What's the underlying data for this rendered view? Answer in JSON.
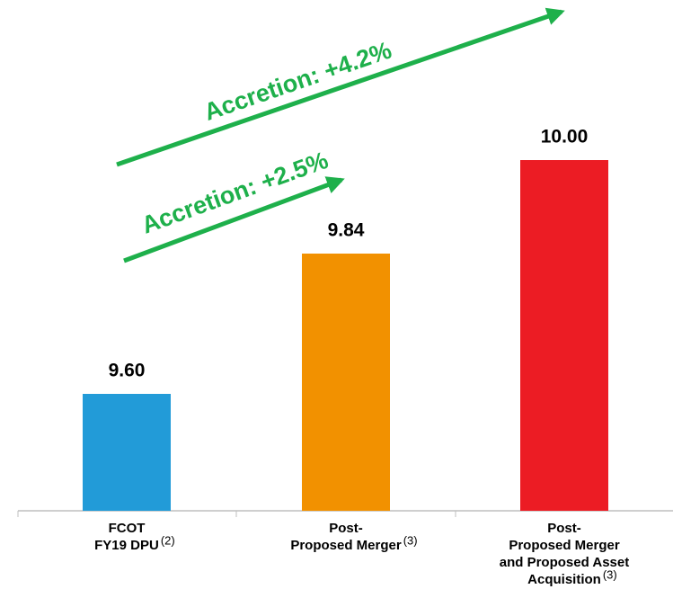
{
  "chart_data": {
    "type": "bar",
    "categories": [
      [
        "FCOT",
        "FY19 DPU"
      ],
      [
        "Post-",
        "Proposed Merger"
      ],
      [
        "Post-",
        "Proposed Merger",
        "and Proposed Asset",
        "Acquisition"
      ]
    ],
    "category_notes": [
      "(2)",
      "(3)",
      "(3)"
    ],
    "values": [
      9.6,
      9.84,
      10.0
    ],
    "value_labels": [
      "9.60",
      "9.84",
      "10.00"
    ],
    "colors": [
      "#229bd8",
      "#f29100",
      "#ec1c24"
    ],
    "ylim": [
      9.4,
      10.1
    ],
    "annotations": [
      "Accretion: +2.5%",
      "Accretion: +4.2%"
    ]
  }
}
